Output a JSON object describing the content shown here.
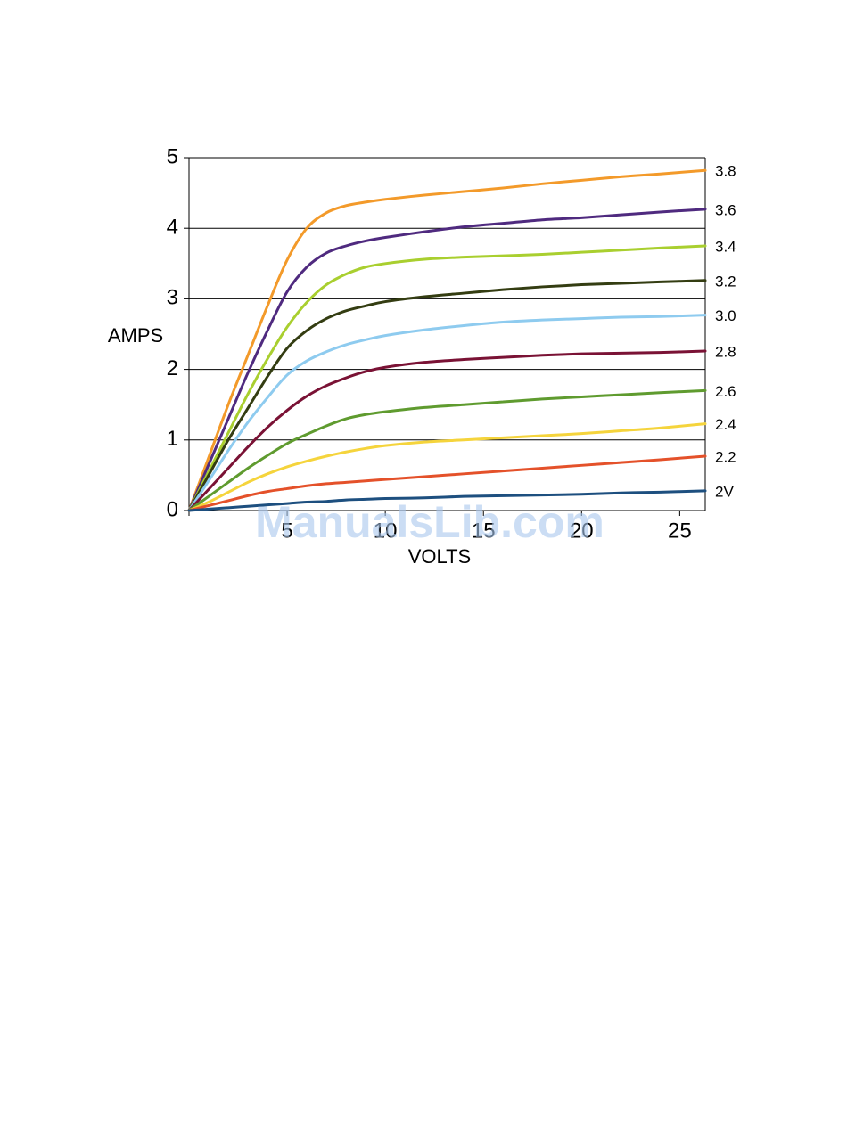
{
  "chart_data": {
    "type": "line",
    "xlabel": "VOLTS",
    "ylabel": "AMPS",
    "watermark": "ManualsLib.com",
    "x": [
      0,
      1,
      2,
      3,
      4,
      5,
      6,
      7,
      8,
      9,
      10,
      12,
      14,
      16,
      18,
      20,
      22,
      24,
      26.3
    ],
    "xlim": [
      0,
      26.3
    ],
    "xticks": [
      5,
      10,
      15,
      20,
      25
    ],
    "ylim": [
      0,
      5
    ],
    "yticks": [
      0,
      1,
      2,
      3,
      4,
      5
    ],
    "grid": true,
    "series": [
      {
        "name": "3.8",
        "color": "#f39a2a",
        "values": [
          0,
          0.75,
          1.5,
          2.2,
          2.9,
          3.55,
          4.0,
          4.22,
          4.32,
          4.37,
          4.41,
          4.47,
          4.52,
          4.57,
          4.63,
          4.68,
          4.73,
          4.77,
          4.82
        ]
      },
      {
        "name": "3.6",
        "color": "#4f2a7f",
        "values": [
          0,
          0.65,
          1.3,
          1.95,
          2.55,
          3.1,
          3.45,
          3.65,
          3.75,
          3.82,
          3.87,
          3.95,
          4.02,
          4.07,
          4.12,
          4.15,
          4.19,
          4.23,
          4.27
        ]
      },
      {
        "name": "3.4",
        "color": "#a9cf2f",
        "values": [
          0,
          0.55,
          1.1,
          1.65,
          2.15,
          2.6,
          2.95,
          3.2,
          3.35,
          3.45,
          3.5,
          3.56,
          3.59,
          3.61,
          3.63,
          3.66,
          3.69,
          3.72,
          3.75
        ]
      },
      {
        "name": "3.2",
        "color": "#343d12",
        "values": [
          0,
          0.5,
          1.0,
          1.45,
          1.9,
          2.3,
          2.55,
          2.72,
          2.83,
          2.9,
          2.96,
          3.03,
          3.08,
          3.13,
          3.17,
          3.2,
          3.22,
          3.24,
          3.26
        ]
      },
      {
        "name": "3.0",
        "color": "#8ecbef",
        "values": [
          0,
          0.42,
          0.85,
          1.25,
          1.6,
          1.92,
          2.12,
          2.25,
          2.35,
          2.42,
          2.48,
          2.56,
          2.62,
          2.67,
          2.7,
          2.72,
          2.74,
          2.75,
          2.77
        ]
      },
      {
        "name": "2.8",
        "color": "#7a1235",
        "values": [
          0,
          0.3,
          0.6,
          0.9,
          1.18,
          1.42,
          1.62,
          1.77,
          1.88,
          1.97,
          2.03,
          2.1,
          2.14,
          2.17,
          2.2,
          2.22,
          2.23,
          2.24,
          2.26
        ]
      },
      {
        "name": "2.6",
        "color": "#5f9b2f",
        "values": [
          0,
          0.2,
          0.4,
          0.6,
          0.78,
          0.95,
          1.08,
          1.2,
          1.3,
          1.36,
          1.4,
          1.46,
          1.5,
          1.54,
          1.58,
          1.61,
          1.64,
          1.67,
          1.7
        ]
      },
      {
        "name": "2.4",
        "color": "#f5d43c",
        "values": [
          0,
          0.12,
          0.26,
          0.4,
          0.52,
          0.62,
          0.7,
          0.77,
          0.83,
          0.88,
          0.92,
          0.97,
          1.0,
          1.03,
          1.06,
          1.09,
          1.13,
          1.17,
          1.23
        ]
      },
      {
        "name": "2.2",
        "color": "#e4512a",
        "values": [
          0,
          0.07,
          0.14,
          0.21,
          0.27,
          0.31,
          0.35,
          0.38,
          0.4,
          0.42,
          0.44,
          0.48,
          0.52,
          0.56,
          0.6,
          0.64,
          0.68,
          0.72,
          0.77
        ]
      },
      {
        "name": "2V",
        "color": "#1d4f7f",
        "values": [
          0,
          0.02,
          0.04,
          0.06,
          0.08,
          0.1,
          0.12,
          0.13,
          0.15,
          0.16,
          0.17,
          0.18,
          0.2,
          0.21,
          0.22,
          0.23,
          0.25,
          0.26,
          0.28
        ]
      }
    ]
  }
}
